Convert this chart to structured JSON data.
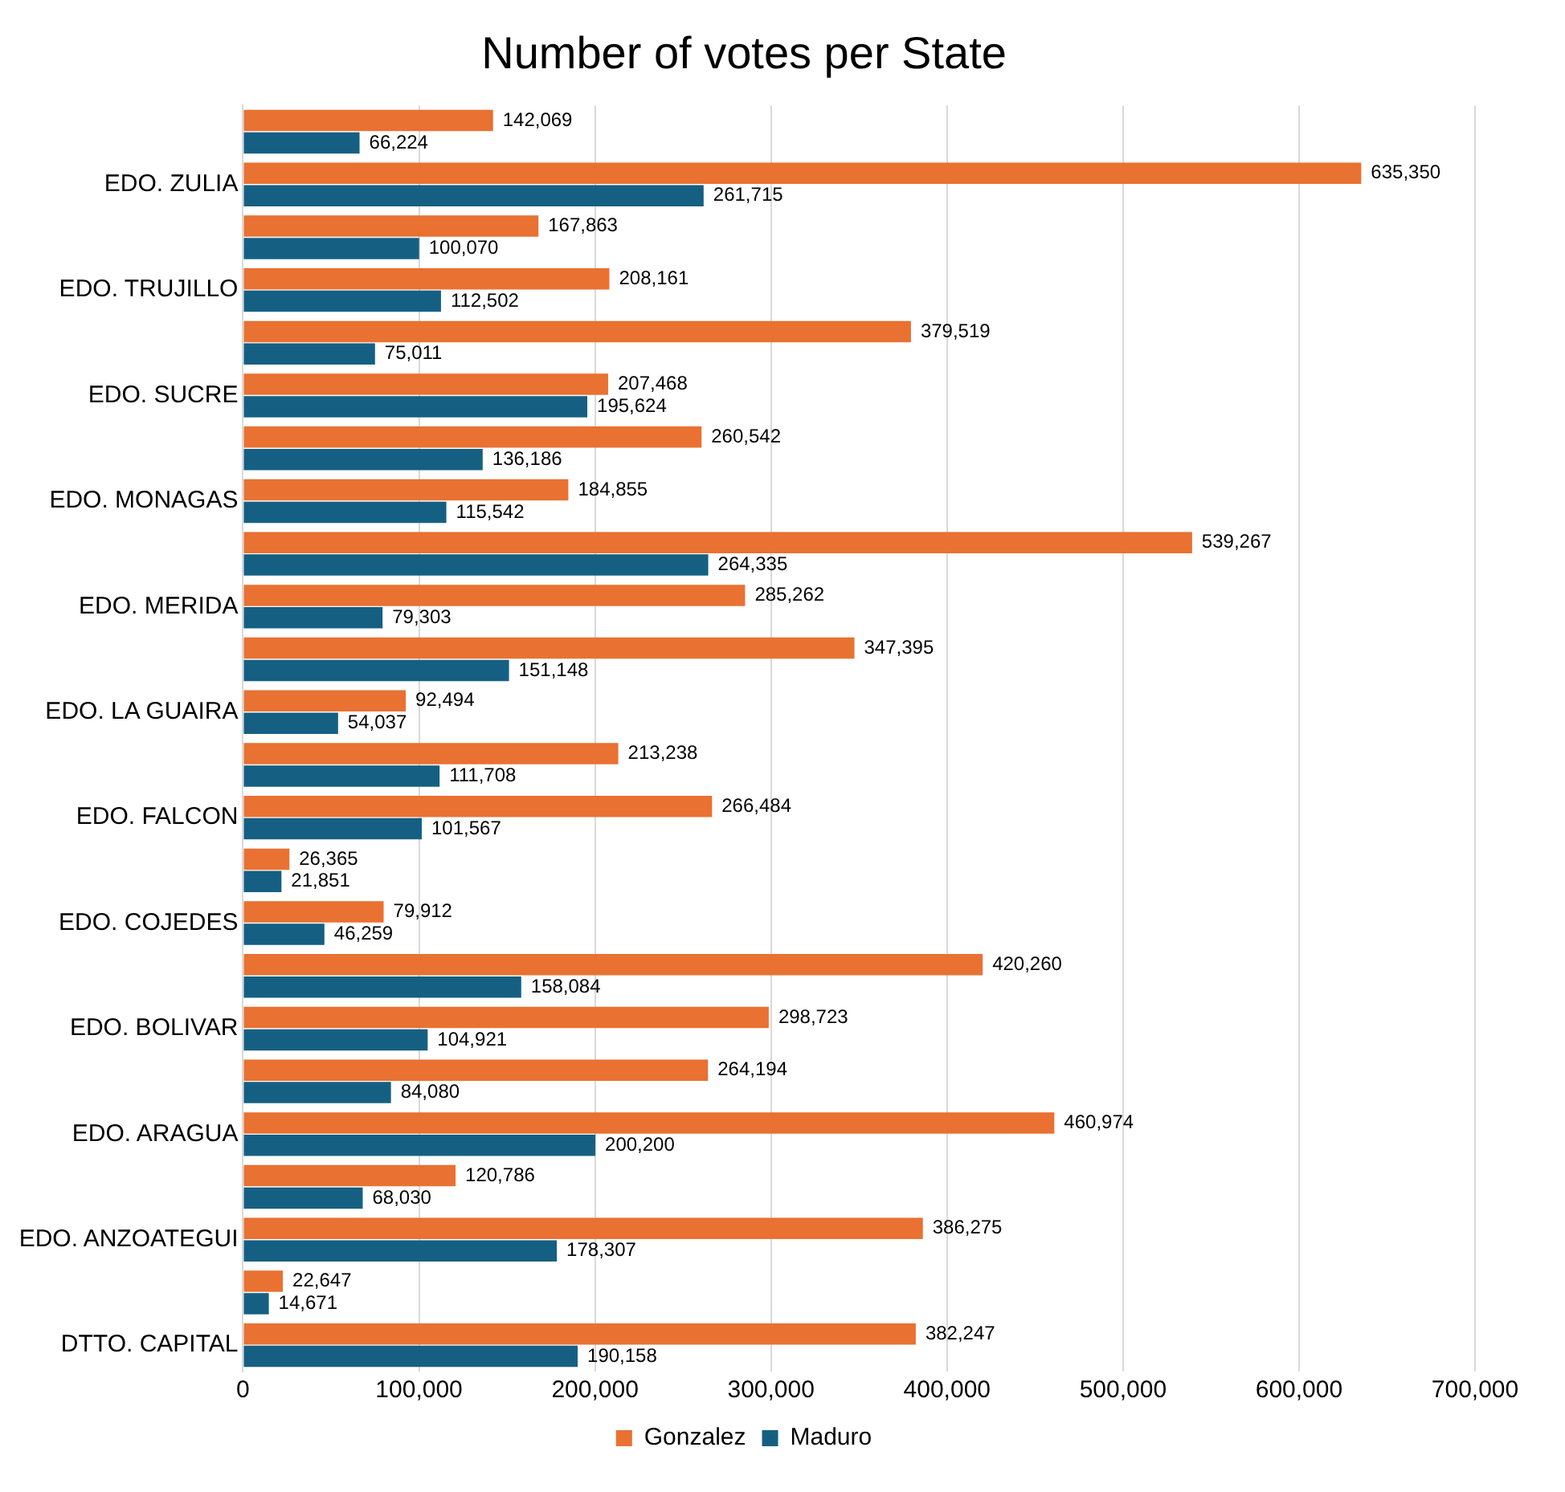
{
  "chart_data": {
    "type": "bar",
    "orientation": "horizontal",
    "title": "Number of votes per State",
    "categories": [
      null,
      "EDO. ZULIA",
      null,
      "EDO. TRUJILLO",
      null,
      "EDO. SUCRE",
      null,
      "EDO. MONAGAS",
      null,
      "EDO. MERIDA",
      null,
      "EDO. LA GUAIRA",
      null,
      "EDO. FALCON",
      null,
      "EDO. COJEDES",
      null,
      "EDO. BOLIVAR",
      null,
      "EDO. ARAGUA",
      null,
      "EDO. ANZOATEGUI",
      null,
      "DTTO. CAPITAL"
    ],
    "series": [
      {
        "name": "Gonzalez",
        "color": "#e97132",
        "values": [
          142069,
          635350,
          167863,
          208161,
          379519,
          207468,
          260542,
          184855,
          539267,
          285262,
          347395,
          92494,
          213238,
          266484,
          26365,
          79912,
          420260,
          298723,
          264194,
          460974,
          120786,
          386275,
          22647,
          382247
        ],
        "value_labels": [
          "142,069",
          "635,350",
          "167,863",
          "208,161",
          "379,519",
          "207,468",
          "260,542",
          "184,855",
          "539,267",
          "285,262",
          "347,395",
          "92,494",
          "213,238",
          "266,484",
          "26,365",
          "79,912",
          "420,260",
          "298,723",
          "264,194",
          "460,974",
          "120,786",
          "386,275",
          "22,647",
          "382,247"
        ]
      },
      {
        "name": "Maduro",
        "color": "#156082",
        "values": [
          66224,
          261715,
          100070,
          112502,
          75011,
          195624,
          136186,
          115542,
          264335,
          79303,
          151148,
          54037,
          111708,
          101567,
          21851,
          46259,
          158084,
          104921,
          84080,
          200200,
          68030,
          178307,
          14671,
          190158
        ],
        "value_labels": [
          "66,224",
          "261,715",
          "100,070",
          "112,502",
          "75,011",
          "195,624",
          "136,186",
          "115,542",
          "264,335",
          "79,303",
          "151,148",
          "54,037",
          "111,708",
          "101,567",
          "21,851",
          "46,259",
          "158,084",
          "104,921",
          "84,080",
          "200,200",
          "68,030",
          "178,307",
          "14,671",
          "190,158"
        ]
      }
    ],
    "xlim": [
      0,
      700000
    ],
    "xticks": [
      0,
      {
        "value": 100000,
        "label": "100,000"
      },
      {
        "value": 200000,
        "label": "200,000"
      },
      {
        "value": 300000,
        "label": "300,000"
      },
      {
        "value": 400000,
        "label": "400,000"
      },
      {
        "value": 500000,
        "label": "500,000"
      },
      {
        "value": 600000,
        "label": "600,000"
      },
      {
        "value": 700000,
        "label": "700,000"
      }
    ],
    "grid": "x",
    "legend": "bottom"
  }
}
